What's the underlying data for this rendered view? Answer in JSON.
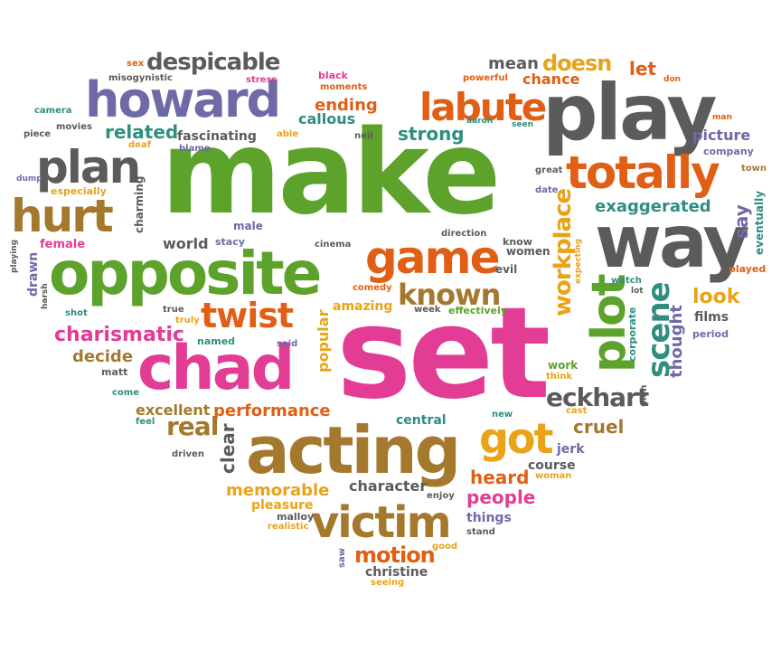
{
  "words": [
    {
      "id": "make",
      "text": "make",
      "color": "green"
    },
    {
      "id": "set",
      "text": "set",
      "color": "pink"
    },
    {
      "id": "play",
      "text": "play",
      "color": "gray"
    },
    {
      "id": "way",
      "text": "way",
      "color": "gray"
    },
    {
      "id": "opposite",
      "text": "opposite",
      "color": "green"
    },
    {
      "id": "acting",
      "text": "acting",
      "color": "brown"
    },
    {
      "id": "chad",
      "text": "chad",
      "color": "pink"
    },
    {
      "id": "howard",
      "text": "howard",
      "color": "purple"
    },
    {
      "id": "totally",
      "text": "totally",
      "color": "orange"
    },
    {
      "id": "victim",
      "text": "victim",
      "color": "brown"
    },
    {
      "id": "game",
      "text": "game",
      "color": "orange"
    },
    {
      "id": "plan",
      "text": "plan",
      "color": "gray"
    },
    {
      "id": "hurt",
      "text": "hurt",
      "color": "brown"
    },
    {
      "id": "labute",
      "text": "labute",
      "color": "orange"
    },
    {
      "id": "plot",
      "text": "plot",
      "color": "green"
    },
    {
      "id": "got",
      "text": "got",
      "color": "gold"
    },
    {
      "id": "scene",
      "text": "scene",
      "color": "teal"
    },
    {
      "id": "twist",
      "text": "twist",
      "color": "orange"
    },
    {
      "id": "known",
      "text": "known",
      "color": "brown"
    },
    {
      "id": "despicable",
      "text": "despicable",
      "color": "gray"
    },
    {
      "id": "workplace",
      "text": "workplace",
      "color": "gold"
    },
    {
      "id": "eckhart",
      "text": "eckhart",
      "color": "gray"
    },
    {
      "id": "real",
      "text": "real",
      "color": "brown"
    },
    {
      "id": "motion",
      "text": "motion",
      "color": "orange"
    },
    {
      "id": "charismatic",
      "text": "charismatic",
      "color": "pink"
    },
    {
      "id": "related",
      "text": "related",
      "color": "teal"
    },
    {
      "id": "strong",
      "text": "strong",
      "color": "teal"
    },
    {
      "id": "exaggerated",
      "text": "exaggerated",
      "color": "teal"
    },
    {
      "id": "doesn",
      "text": "doesn",
      "color": "gold"
    },
    {
      "id": "thought",
      "text": "thought",
      "color": "purple"
    },
    {
      "id": "performance",
      "text": "performance",
      "color": "orange"
    },
    {
      "id": "memorable",
      "text": "memorable",
      "color": "gold"
    },
    {
      "id": "people",
      "text": "people",
      "color": "pink"
    },
    {
      "id": "clear",
      "text": "clear",
      "color": "gray"
    },
    {
      "id": "cruel",
      "text": "cruel",
      "color": "brown"
    },
    {
      "id": "heard",
      "text": "heard",
      "color": "orange"
    },
    {
      "id": "character",
      "text": "character",
      "color": "gray"
    },
    {
      "id": "look",
      "text": "look",
      "color": "gold"
    },
    {
      "id": "say",
      "text": "say",
      "color": "purple"
    },
    {
      "id": "decide",
      "text": "decide",
      "color": "brown"
    },
    {
      "id": "excellent",
      "text": "excellent",
      "color": "brown"
    },
    {
      "id": "ending",
      "text": "ending",
      "color": "orange"
    },
    {
      "id": "callous",
      "text": "callous",
      "color": "teal"
    },
    {
      "id": "popular",
      "text": "popular",
      "color": "gold"
    },
    {
      "id": "mean",
      "text": "mean",
      "color": "gray"
    },
    {
      "id": "let",
      "text": "let",
      "color": "orange"
    },
    {
      "id": "chance",
      "text": "chance",
      "color": "orange"
    },
    {
      "id": "picture",
      "text": "picture",
      "color": "purple"
    },
    {
      "id": "world",
      "text": "world",
      "color": "gray"
    },
    {
      "id": "central",
      "text": "central",
      "color": "teal"
    },
    {
      "id": "christine",
      "text": "christine",
      "color": "gray"
    },
    {
      "id": "films",
      "text": "films",
      "color": "gray"
    },
    {
      "id": "jerk",
      "text": "jerk",
      "color": "purple"
    },
    {
      "id": "course",
      "text": "course",
      "color": "gray"
    },
    {
      "id": "pleasure",
      "text": "pleasure",
      "color": "gold"
    },
    {
      "id": "things",
      "text": "things",
      "color": "purple"
    },
    {
      "id": "female",
      "text": "female",
      "color": "pink"
    },
    {
      "id": "fascinating",
      "text": "fascinating",
      "color": "gray"
    },
    {
      "id": "amazing",
      "text": "amazing",
      "color": "gold"
    },
    {
      "id": "drawn",
      "text": "drawn",
      "color": "purple"
    },
    {
      "id": "charming",
      "text": "charming",
      "color": "gray"
    },
    {
      "id": "eventually",
      "text": "eventually",
      "color": "teal"
    },
    {
      "id": "especially",
      "text": "especially",
      "color": "gold"
    },
    {
      "id": "women",
      "text": "women",
      "color": "gray"
    },
    {
      "id": "work",
      "text": "work",
      "color": "green"
    },
    {
      "id": "effectively",
      "text": "effectively",
      "color": "green"
    },
    {
      "id": "corporate",
      "text": "corporate",
      "color": "teal"
    },
    {
      "id": "played",
      "text": "played",
      "color": "orange"
    },
    {
      "id": "company",
      "text": "company",
      "color": "purple"
    },
    {
      "id": "direction",
      "text": "direction",
      "color": "gray"
    },
    {
      "id": "matt",
      "text": "matt",
      "color": "gray"
    },
    {
      "id": "period",
      "text": "period",
      "color": "purple"
    },
    {
      "id": "malloy",
      "text": "malloy",
      "color": "gray"
    },
    {
      "id": "realistic",
      "text": "realistic",
      "color": "gold"
    },
    {
      "id": "saw",
      "text": "saw",
      "color": "purple"
    },
    {
      "id": "seeing",
      "text": "seeing",
      "color": "gold"
    },
    {
      "id": "good",
      "text": "good",
      "color": "gold"
    },
    {
      "id": "stand",
      "text": "stand",
      "color": "gray"
    },
    {
      "id": "woman",
      "text": "woman",
      "color": "gold"
    },
    {
      "id": "enjoy",
      "text": "enjoy",
      "color": "gray"
    },
    {
      "id": "new",
      "text": "new",
      "color": "teal"
    },
    {
      "id": "cast",
      "text": "cast",
      "color": "gold"
    },
    {
      "id": "think",
      "text": "think",
      "color": "gold"
    },
    {
      "id": "men",
      "text": "men",
      "color": "gray"
    },
    {
      "id": "said",
      "text": "said",
      "color": "purple"
    },
    {
      "id": "week",
      "text": "week",
      "color": "gray"
    },
    {
      "id": "comedy",
      "text": "comedy",
      "color": "orange"
    },
    {
      "id": "evil",
      "text": "evil",
      "color": "gray"
    },
    {
      "id": "know",
      "text": "know",
      "color": "gray"
    },
    {
      "id": "cinema",
      "text": "cinema",
      "color": "gray"
    },
    {
      "id": "stacy",
      "text": "stacy",
      "color": "purple"
    },
    {
      "id": "male",
      "text": "male",
      "color": "purple"
    },
    {
      "id": "named",
      "text": "named",
      "color": "teal"
    },
    {
      "id": "truly",
      "text": "truly",
      "color": "gold"
    },
    {
      "id": "true",
      "text": "true",
      "color": "gray"
    },
    {
      "id": "shot",
      "text": "shot",
      "color": "teal"
    },
    {
      "id": "harsh",
      "text": "harsh",
      "color": "gray"
    },
    {
      "id": "playing",
      "text": "playing",
      "color": "gray"
    },
    {
      "id": "feel",
      "text": "feel",
      "color": "teal"
    },
    {
      "id": "come",
      "text": "come",
      "color": "teal"
    },
    {
      "id": "driven",
      "text": "driven",
      "color": "gray"
    },
    {
      "id": "dump",
      "text": "dump",
      "color": "purple"
    },
    {
      "id": "piece",
      "text": "piece",
      "color": "gray"
    },
    {
      "id": "camera",
      "text": "camera",
      "color": "teal"
    },
    {
      "id": "movies",
      "text": "movies",
      "color": "gray"
    },
    {
      "id": "deaf",
      "text": "deaf",
      "color": "gold"
    },
    {
      "id": "blame",
      "text": "blame",
      "color": "purple"
    },
    {
      "id": "misogynistic",
      "text": "misogynistic",
      "color": "gray"
    },
    {
      "id": "sex",
      "text": "sex",
      "color": "orange"
    },
    {
      "id": "stress",
      "text": "stress",
      "color": "pink"
    },
    {
      "id": "black",
      "text": "black",
      "color": "pink"
    },
    {
      "id": "moments",
      "text": "moments",
      "color": "orange"
    },
    {
      "id": "able",
      "text": "able",
      "color": "gold"
    },
    {
      "id": "neil",
      "text": "neil",
      "color": "gray"
    },
    {
      "id": "aaron",
      "text": "aaron",
      "color": "teal"
    },
    {
      "id": "seen",
      "text": "seen",
      "color": "teal"
    },
    {
      "id": "powerful",
      "text": "powerful",
      "color": "orange"
    },
    {
      "id": "don",
      "text": "don",
      "color": "orange"
    },
    {
      "id": "man",
      "text": "man",
      "color": "orange"
    },
    {
      "id": "town",
      "text": "town",
      "color": "brown"
    },
    {
      "id": "great",
      "text": "great",
      "color": "gray"
    },
    {
      "id": "date",
      "text": "date",
      "color": "purple"
    },
    {
      "id": "expecting",
      "text": "expecting",
      "color": "gold"
    },
    {
      "id": "watch",
      "text": "watch",
      "color": "teal"
    },
    {
      "id": "lot",
      "text": "lot",
      "color": "gray"
    }
  ]
}
